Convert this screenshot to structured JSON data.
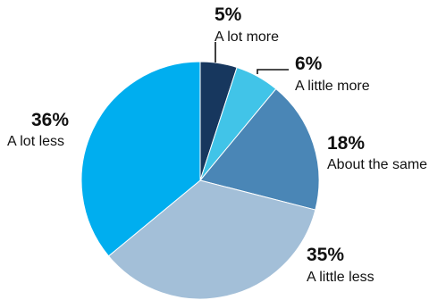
{
  "chart_data": {
    "type": "pie",
    "slices": [
      {
        "label": "A lot more",
        "value": 5,
        "value_label": "5%",
        "color": "#17375e"
      },
      {
        "label": "A little more",
        "value": 6,
        "value_label": "6%",
        "color": "#41c4e8"
      },
      {
        "label": "About the same",
        "value": 18,
        "value_label": "18%",
        "color": "#4a86b6"
      },
      {
        "label": "A little less",
        "value": 35,
        "value_label": "35%",
        "color": "#a3bfd8"
      },
      {
        "label": "A lot less",
        "value": 36,
        "value_label": "36%",
        "color": "#00aeef"
      }
    ]
  }
}
